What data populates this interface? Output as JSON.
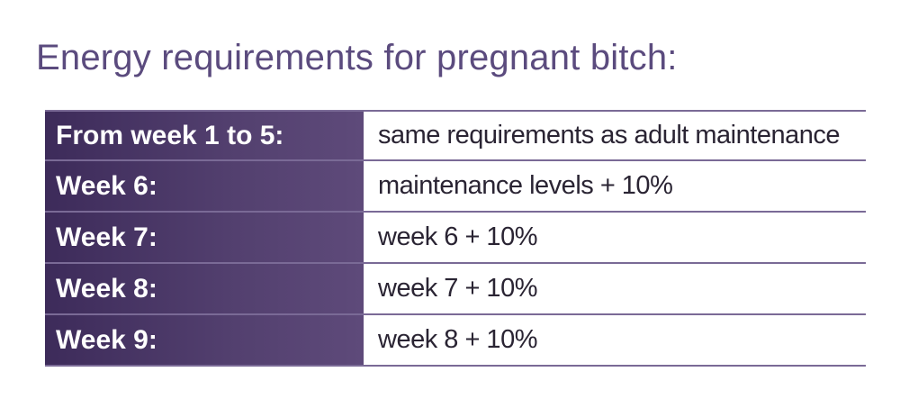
{
  "title": "Energy requirements for pregnant bitch:",
  "rows": [
    {
      "label": "From week 1 to 5:",
      "value": "same requirements as adult maintenance"
    },
    {
      "label": "Week 6:",
      "value": "maintenance levels + 10%"
    },
    {
      "label": "Week 7:",
      "value": "week 6 + 10%"
    },
    {
      "label": "Week 8:",
      "value": "week 7 + 10%"
    },
    {
      "label": "Week 9:",
      "value": "week 8 + 10%"
    }
  ],
  "colors": {
    "title": "#5b4b7e",
    "label_bg_start": "#3d2b5a",
    "label_bg_end": "#5e4a7a",
    "label_text": "#ffffff",
    "border": "#7a6a96"
  }
}
